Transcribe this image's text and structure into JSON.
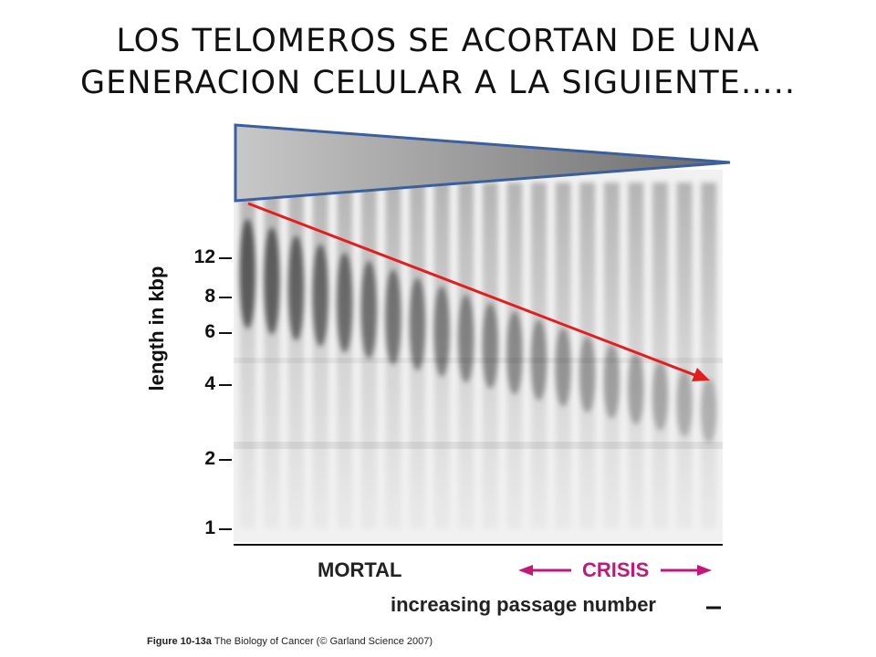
{
  "title": {
    "line1": "LOS TELOMEROS SE ACORTAN DE UNA",
    "line2": "GENERACION CELULAR A LA SIGUIENTE….."
  },
  "gel": {
    "y_axis_label": "length in kbp",
    "ticks": [
      "12",
      "8",
      "6",
      "4",
      "2",
      "1"
    ],
    "label_mortal": "MORTAL",
    "label_crisis": "CRISIS",
    "x_axis_label": "increasing passage number",
    "crisis_color": "#c2187a",
    "arrow_color": "#e02020",
    "wedge_border_color": "#3b5f9e"
  },
  "caption": {
    "figure": "Figure 10-13a",
    "text": "The Biology of Cancer (© Garland Science 2007)"
  }
}
